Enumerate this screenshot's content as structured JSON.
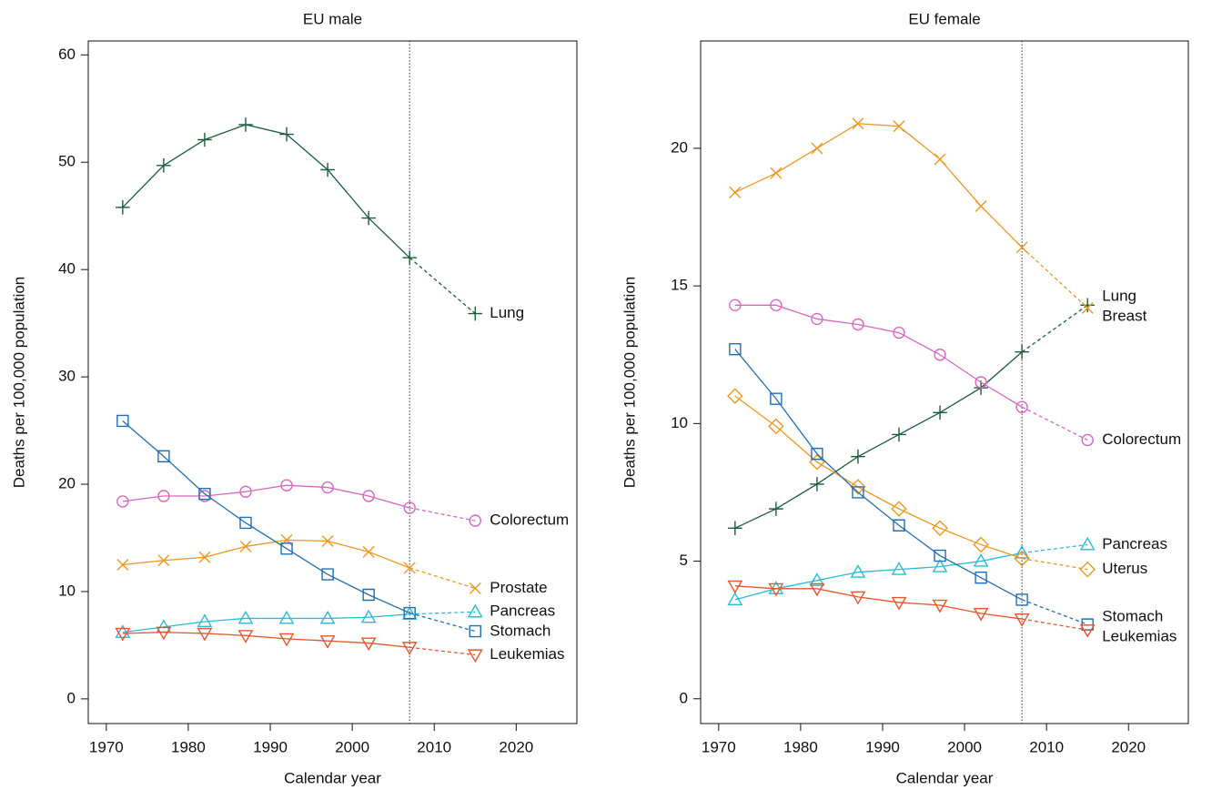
{
  "chart_data": [
    {
      "type": "line",
      "title": "EU male",
      "x_label": "Calendar year",
      "y_label": "Deaths per 100,000 population",
      "x": [
        1972,
        1977,
        1982,
        1987,
        1992,
        1997,
        2002,
        2007,
        2015
      ],
      "xlim": [
        1967.8,
        2027.4
      ],
      "ylim": [
        -2.3,
        61.3
      ],
      "xticks": [
        1970,
        1980,
        1990,
        2000,
        2010,
        2020
      ],
      "yticks": [
        0,
        10,
        20,
        30,
        40,
        50,
        60
      ],
      "vline": 2007,
      "series": [
        {
          "name": "Lung",
          "color": "#1b5e3b",
          "marker": "plus",
          "values": [
            45.8,
            49.7,
            52.1,
            53.5,
            52.6,
            49.3,
            44.8,
            41.1,
            35.9
          ]
        },
        {
          "name": "Colorectum",
          "color": "#d966c2",
          "marker": "circle",
          "values": [
            18.4,
            18.9,
            18.9,
            19.3,
            19.9,
            19.7,
            18.9,
            17.8,
            16.6
          ]
        },
        {
          "name": "Prostate",
          "color": "#f0961e",
          "marker": "cross",
          "values": [
            12.5,
            12.9,
            13.2,
            14.2,
            14.8,
            14.7,
            13.7,
            12.2,
            10.3
          ]
        },
        {
          "name": "Pancreas",
          "color": "#2bbbd8",
          "marker": "triangle-up",
          "values": [
            6.2,
            6.7,
            7.2,
            7.5,
            7.5,
            7.5,
            7.6,
            7.9,
            8.1
          ]
        },
        {
          "name": "Stomach",
          "color": "#1f6fb5",
          "marker": "square",
          "values": [
            25.9,
            22.6,
            19.1,
            16.4,
            14.0,
            11.6,
            9.7,
            8.0,
            6.3
          ]
        },
        {
          "name": "Leukemias",
          "color": "#e8562a",
          "marker": "triangle-down",
          "values": [
            6.1,
            6.2,
            6.1,
            5.9,
            5.6,
            5.4,
            5.2,
            4.8,
            4.1
          ]
        }
      ]
    },
    {
      "type": "line",
      "title": "EU female",
      "x_label": "Calendar year",
      "y_label": "Deaths per 100,000 population",
      "x": [
        1972,
        1977,
        1982,
        1987,
        1992,
        1997,
        2002,
        2007,
        2015
      ],
      "xlim": [
        1967.8,
        2027.3
      ],
      "ylim": [
        -0.9,
        23.9
      ],
      "xticks": [
        1970,
        1980,
        1990,
        2000,
        2010,
        2020
      ],
      "yticks": [
        0,
        5,
        10,
        15,
        20
      ],
      "vline": 2007,
      "series": [
        {
          "name": "Lung",
          "color": "#1b5e3b",
          "marker": "plus",
          "values": [
            6.2,
            6.9,
            7.8,
            8.8,
            9.6,
            10.4,
            11.3,
            12.6,
            14.3
          ]
        },
        {
          "name": "Breast",
          "color": "#f0961e",
          "marker": "cross",
          "values": [
            18.4,
            19.1,
            20.0,
            20.9,
            20.8,
            19.6,
            17.9,
            16.4,
            14.2
          ]
        },
        {
          "name": "Colorectum",
          "color": "#d966c2",
          "marker": "circle",
          "values": [
            14.3,
            14.3,
            13.8,
            13.6,
            13.3,
            12.5,
            11.5,
            10.6,
            9.4
          ]
        },
        {
          "name": "Pancreas",
          "color": "#2bbbd8",
          "marker": "triangle-up",
          "values": [
            3.6,
            4.0,
            4.3,
            4.6,
            4.7,
            4.8,
            5.0,
            5.3,
            5.6
          ]
        },
        {
          "name": "Uterus",
          "color": "#f0961e",
          "marker": "diamond",
          "values": [
            11.0,
            9.9,
            8.6,
            7.7,
            6.9,
            6.2,
            5.6,
            5.1,
            4.7
          ]
        },
        {
          "name": "Stomach",
          "color": "#1f6fb5",
          "marker": "square",
          "values": [
            12.7,
            10.9,
            8.9,
            7.5,
            6.3,
            5.2,
            4.4,
            3.6,
            2.7
          ]
        },
        {
          "name": "Leukemias",
          "color": "#e8562a",
          "marker": "triangle-down",
          "values": [
            4.1,
            4.0,
            4.0,
            3.7,
            3.5,
            3.4,
            3.1,
            2.9,
            2.5
          ]
        }
      ]
    }
  ]
}
